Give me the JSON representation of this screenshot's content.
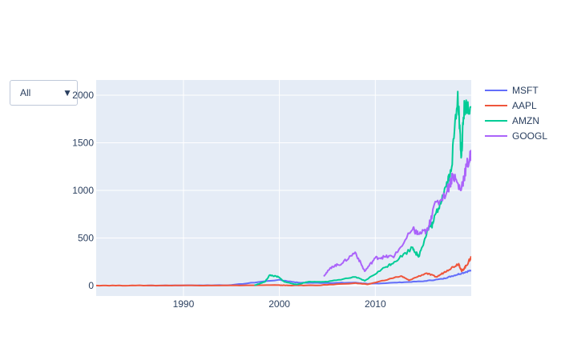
{
  "dropdown": {
    "selected": "All",
    "arrow": "▼"
  },
  "chart_data": {
    "type": "line",
    "title": "",
    "xlabel": "",
    "ylabel": "",
    "xlim": [
      1980.9,
      2020.0
    ],
    "ylim": [
      -110,
      2160
    ],
    "x_ticks": [
      1990,
      2000,
      2010
    ],
    "y_ticks": [
      0,
      500,
      1000,
      1500,
      2000
    ],
    "y_tick_labels": [
      "0",
      "500",
      "1000",
      "1500",
      "2000"
    ],
    "grid": true,
    "legend_position": "top-right",
    "series": [
      {
        "name": "MSFT",
        "color": "#636efa",
        "x": [
          1986.2,
          1990,
          1995,
          1999.9,
          2002,
          2005,
          2008,
          2009.2,
          2012,
          2015,
          2017,
          2018,
          2019,
          2020
        ],
        "y": [
          0.1,
          1,
          5,
          60,
          30,
          27,
          30,
          17,
          30,
          45,
          70,
          100,
          130,
          160
        ]
      },
      {
        "name": "AAPL",
        "color": "#ef553b",
        "x": [
          1980.9,
          1985,
          1990,
          1995,
          1999.9,
          2001,
          2004,
          2007.9,
          2009.2,
          2012.7,
          2013.5,
          2015.3,
          2016.4,
          2017.5,
          2018.7,
          2019.0,
          2019.5,
          2020
        ],
        "y": [
          0.5,
          0.3,
          1,
          1.3,
          4,
          1.5,
          2,
          25,
          12,
          100,
          55,
          130,
          90,
          160,
          230,
          150,
          210,
          300
        ]
      },
      {
        "name": "AMZN",
        "color": "#00cc96",
        "x": [
          1997.4,
          1998.5,
          1999.0,
          1999.9,
          2000.5,
          2001.8,
          2003,
          2005,
          2007.9,
          2008.9,
          2011,
          2012,
          2013.9,
          2014.5,
          2015.5,
          2016,
          2017,
          2017.9,
          2018.6,
          2018.95,
          2019.3,
          2020
        ],
        "y": [
          1.5,
          40,
          110,
          90,
          40,
          10,
          40,
          40,
          90,
          50,
          190,
          250,
          400,
          300,
          600,
          650,
          950,
          1200,
          2039,
          1343,
          1900,
          1880
        ]
      },
      {
        "name": "GOOGL",
        "color": "#ab63fa",
        "x": [
          2004.6,
          2005.5,
          2006.5,
          2007.9,
          2008.9,
          2010,
          2011,
          2012,
          2013.9,
          2014.5,
          2015.5,
          2016,
          2017.5,
          2018.1,
          2018.9,
          2019.5,
          2020
        ],
        "y": [
          100,
          200,
          230,
          350,
          150,
          290,
          300,
          310,
          590,
          540,
          580,
          800,
          1000,
          1170,
          1000,
          1250,
          1370
        ]
      }
    ]
  }
}
